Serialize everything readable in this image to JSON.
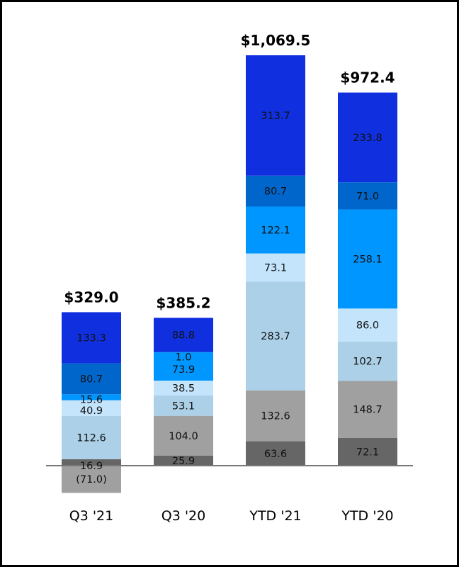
{
  "chart_data": {
    "type": "bar",
    "stacked": true,
    "title": "",
    "xlabel": "",
    "ylabel": "",
    "categories": [
      "Q3 '21",
      "Q3 '20",
      "YTD '21",
      "YTD '20"
    ],
    "totals": [
      "$329.0",
      "$385.2",
      "$1,069.5",
      "$972.4"
    ],
    "total_values": [
      329.0,
      385.2,
      1069.5,
      972.4
    ],
    "series": [
      {
        "name": "series-1",
        "color": "#666666",
        "values": [
          16.9,
          25.9,
          63.6,
          72.1
        ],
        "labels": [
          "16.9",
          "25.9",
          "63.6",
          "72.1"
        ]
      },
      {
        "name": "series-2",
        "color": "#a0a0a0",
        "values": [
          -71.0,
          104.0,
          132.6,
          148.7
        ],
        "labels": [
          "(71.0)",
          "104.0",
          "132.6",
          "148.7"
        ]
      },
      {
        "name": "series-3",
        "color": "#acd0e8",
        "values": [
          112.6,
          53.1,
          283.7,
          102.7
        ],
        "labels": [
          "112.6",
          "53.1",
          "283.7",
          "102.7"
        ]
      },
      {
        "name": "series-4",
        "color": "#c4e4fc",
        "values": [
          40.9,
          38.5,
          73.1,
          86.0
        ],
        "labels": [
          "40.9",
          "38.5",
          "73.1",
          "86.0"
        ]
      },
      {
        "name": "series-5",
        "color": "#0096ff",
        "values": [
          15.6,
          73.9,
          122.1,
          258.1
        ],
        "labels": [
          "15.6",
          "73.9",
          "122.1",
          "258.1"
        ]
      },
      {
        "name": "series-6",
        "color": "#0066cc",
        "values": [
          80.7,
          1.0,
          80.7,
          71.0
        ],
        "labels": [
          "80.7",
          "1.0",
          "80.7",
          "71.0"
        ]
      },
      {
        "name": "series-7",
        "color": "#1030e0",
        "values": [
          133.3,
          88.8,
          313.7,
          233.8
        ],
        "labels": [
          "133.3",
          "88.8",
          "313.7",
          "233.8"
        ]
      }
    ],
    "ylim": [
      -71.0,
      1069.5
    ],
    "grid": false,
    "legend": "none"
  }
}
